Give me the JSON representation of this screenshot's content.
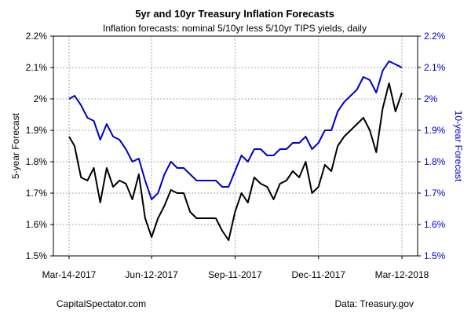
{
  "chart_data": {
    "type": "line",
    "title": "5yr and 10yr Treasury Inflation Forecasts",
    "subtitle": "Inflation forecasts: nominal 5/10yr less 5/10yr TIPS yields, daily",
    "ylabel_left": "5-year Forecast",
    "ylabel_right": "10-year Forecast",
    "ylim": [
      1.5,
      2.2
    ],
    "yticks": [
      1.5,
      1.6,
      1.7,
      1.8,
      1.9,
      2.0,
      2.1,
      2.2
    ],
    "ytick_labels": [
      "1.5%",
      "1.6%",
      "1.7%",
      "1.8%",
      "1.9%",
      "2%",
      "2.1%",
      "2.2%"
    ],
    "xlim": [
      "2017-03-14",
      "2018-03-12"
    ],
    "xticks": [
      "2017-03-14",
      "2017-06-12",
      "2017-09-11",
      "2017-12-11",
      "2018-03-12"
    ],
    "xtick_labels": [
      "Mar-14-2017",
      "Jun-12-2017",
      "Sep-11-2017",
      "Dec-11-2017",
      "Mar-12-2018"
    ],
    "grid": true,
    "left_footer": "CapitalSpectator.com",
    "right_footer": "Data: Treasury.gov",
    "colors": {
      "five_year": "#000000",
      "ten_year": "#0000cc",
      "grid": "#aaaaaa"
    },
    "series": [
      {
        "axis": "left",
        "x": [
          "2017-03-14",
          "2017-03-20",
          "2017-03-27",
          "2017-04-03",
          "2017-04-10",
          "2017-04-17",
          "2017-04-24",
          "2017-05-01",
          "2017-05-08",
          "2017-05-15",
          "2017-05-22",
          "2017-05-29",
          "2017-06-05",
          "2017-06-12",
          "2017-06-19",
          "2017-06-26",
          "2017-07-03",
          "2017-07-10",
          "2017-07-17",
          "2017-07-24",
          "2017-07-31",
          "2017-08-07",
          "2017-08-14",
          "2017-08-21",
          "2017-08-28",
          "2017-09-04",
          "2017-09-11",
          "2017-09-18",
          "2017-09-25",
          "2017-10-02",
          "2017-10-09",
          "2017-10-16",
          "2017-10-23",
          "2017-10-30",
          "2017-11-06",
          "2017-11-13",
          "2017-11-20",
          "2017-11-27",
          "2017-12-04",
          "2017-12-11",
          "2017-12-18",
          "2017-12-25",
          "2018-01-01",
          "2018-01-08",
          "2018-01-15",
          "2018-01-22",
          "2018-01-29",
          "2018-02-05",
          "2018-02-12",
          "2018-02-19",
          "2018-02-26",
          "2018-03-05",
          "2018-03-12"
        ],
        "values": [
          1.88,
          1.85,
          1.75,
          1.74,
          1.78,
          1.67,
          1.78,
          1.72,
          1.74,
          1.73,
          1.68,
          1.76,
          1.62,
          1.56,
          1.62,
          1.66,
          1.71,
          1.7,
          1.7,
          1.64,
          1.62,
          1.62,
          1.62,
          1.62,
          1.58,
          1.55,
          1.64,
          1.7,
          1.67,
          1.75,
          1.73,
          1.72,
          1.68,
          1.73,
          1.74,
          1.77,
          1.75,
          1.8,
          1.7,
          1.72,
          1.79,
          1.77,
          1.85,
          1.88,
          1.9,
          1.92,
          1.94,
          1.9,
          1.83,
          1.97,
          2.05,
          1.96,
          2.02
        ]
      },
      {
        "axis": "right",
        "x": [
          "2017-03-14",
          "2017-03-20",
          "2017-03-27",
          "2017-04-03",
          "2017-04-10",
          "2017-04-17",
          "2017-04-24",
          "2017-05-01",
          "2017-05-08",
          "2017-05-15",
          "2017-05-22",
          "2017-05-29",
          "2017-06-05",
          "2017-06-12",
          "2017-06-19",
          "2017-06-26",
          "2017-07-03",
          "2017-07-10",
          "2017-07-17",
          "2017-07-24",
          "2017-07-31",
          "2017-08-07",
          "2017-08-14",
          "2017-08-21",
          "2017-08-28",
          "2017-09-04",
          "2017-09-11",
          "2017-09-18",
          "2017-09-25",
          "2017-10-02",
          "2017-10-09",
          "2017-10-16",
          "2017-10-23",
          "2017-10-30",
          "2017-11-06",
          "2017-11-13",
          "2017-11-20",
          "2017-11-27",
          "2017-12-04",
          "2017-12-11",
          "2017-12-18",
          "2017-12-25",
          "2018-01-01",
          "2018-01-08",
          "2018-01-15",
          "2018-01-22",
          "2018-01-29",
          "2018-02-05",
          "2018-02-12",
          "2018-02-19",
          "2018-02-26",
          "2018-03-05",
          "2018-03-12"
        ],
        "values": [
          2.0,
          2.01,
          1.98,
          1.94,
          1.93,
          1.87,
          1.92,
          1.88,
          1.87,
          1.84,
          1.8,
          1.81,
          1.74,
          1.68,
          1.7,
          1.76,
          1.8,
          1.78,
          1.78,
          1.76,
          1.74,
          1.74,
          1.74,
          1.74,
          1.72,
          1.72,
          1.77,
          1.82,
          1.8,
          1.84,
          1.84,
          1.82,
          1.82,
          1.84,
          1.84,
          1.86,
          1.86,
          1.88,
          1.84,
          1.86,
          1.9,
          1.9,
          1.96,
          1.99,
          2.01,
          2.03,
          2.07,
          2.06,
          2.02,
          2.09,
          2.12,
          2.11,
          2.1
        ]
      }
    ]
  }
}
